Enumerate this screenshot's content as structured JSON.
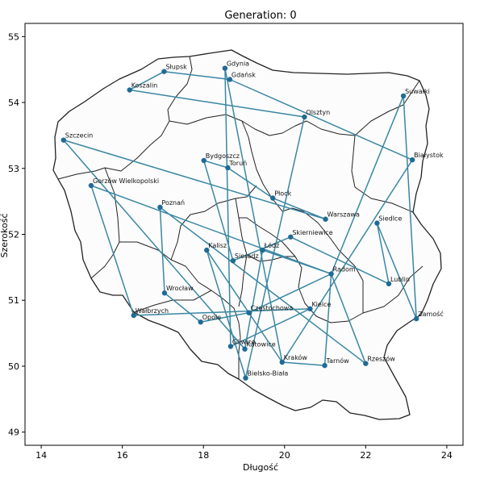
{
  "chart_data": {
    "type": "line",
    "title": "Generation: 0",
    "xlabel": "Długość",
    "ylabel": "Szerokość",
    "xlim": [
      13.6,
      24.4
    ],
    "ylim": [
      48.8,
      55.2
    ],
    "xticks": [
      "14",
      "16",
      "18",
      "20",
      "22",
      "24"
    ],
    "xtick_values": [
      14,
      16,
      18,
      20,
      22,
      24
    ],
    "yticks": [
      "49",
      "50",
      "51",
      "52",
      "53",
      "54",
      "55"
    ],
    "ytick_values": [
      49,
      50,
      51,
      52,
      53,
      54,
      55
    ],
    "grid": false,
    "colors": {
      "route": "#3a87a3",
      "point": "#1f6b96",
      "border": "#222222"
    },
    "cities": [
      {
        "name": "Słupsk",
        "x": 17.03,
        "y": 54.47
      },
      {
        "name": "Gdynia",
        "x": 18.53,
        "y": 54.52
      },
      {
        "name": "Gdańsk",
        "x": 18.65,
        "y": 54.35
      },
      {
        "name": "Koszalin",
        "x": 16.18,
        "y": 54.19
      },
      {
        "name": "Suwałki",
        "x": 22.93,
        "y": 54.1
      },
      {
        "name": "Olsztyn",
        "x": 20.49,
        "y": 53.78
      },
      {
        "name": "Szczecin",
        "x": 14.55,
        "y": 53.43
      },
      {
        "name": "Białystok",
        "x": 23.15,
        "y": 53.13
      },
      {
        "name": "Bydgoszcz",
        "x": 18.01,
        "y": 53.12
      },
      {
        "name": "Toruń",
        "x": 18.6,
        "y": 53.01
      },
      {
        "name": "Gorzów Wielkopolski",
        "x": 15.23,
        "y": 52.74
      },
      {
        "name": "Płock",
        "x": 19.71,
        "y": 52.55
      },
      {
        "name": "Poznań",
        "x": 16.93,
        "y": 52.41
      },
      {
        "name": "Warszawa",
        "x": 21.01,
        "y": 52.23
      },
      {
        "name": "Siedlce",
        "x": 22.28,
        "y": 52.17
      },
      {
        "name": "Skierniewice",
        "x": 20.15,
        "y": 51.96
      },
      {
        "name": "Kalisz",
        "x": 18.08,
        "y": 51.76
      },
      {
        "name": "Łódź",
        "x": 19.46,
        "y": 51.76
      },
      {
        "name": "Sieradz",
        "x": 18.73,
        "y": 51.6
      },
      {
        "name": "Radom",
        "x": 21.15,
        "y": 51.4
      },
      {
        "name": "Lublin",
        "x": 22.57,
        "y": 51.25
      },
      {
        "name": "Wrocław",
        "x": 17.04,
        "y": 51.11
      },
      {
        "name": "Kielce",
        "x": 20.63,
        "y": 50.87
      },
      {
        "name": "Częstochowa",
        "x": 19.12,
        "y": 50.81
      },
      {
        "name": "Wałbrzych",
        "x": 16.28,
        "y": 50.77
      },
      {
        "name": "Zamość",
        "x": 23.25,
        "y": 50.72
      },
      {
        "name": "Opole",
        "x": 17.93,
        "y": 50.67
      },
      {
        "name": "Gliwice",
        "x": 18.67,
        "y": 50.3
      },
      {
        "name": "Katowice",
        "x": 19.02,
        "y": 50.26
      },
      {
        "name": "Kraków",
        "x": 19.94,
        "y": 50.06
      },
      {
        "name": "Rzeszów",
        "x": 22.0,
        "y": 50.04
      },
      {
        "name": "Tarnów",
        "x": 20.99,
        "y": 50.01
      },
      {
        "name": "Bielsko-Biała",
        "x": 19.04,
        "y": 49.82
      }
    ],
    "route_order": [
      "Szczecin",
      "Warszawa",
      "Płock",
      "Toruń",
      "Bydgoszcz",
      "Sieradz",
      "Skierniewice",
      "Lublin",
      "Siedlce",
      "Zamość",
      "Suwałki",
      "Radom",
      "Gorzów Wielkopolski",
      "Wałbrzych",
      "Kielce",
      "Gliwice",
      "Gdynia",
      "Kraków",
      "Białystok",
      "Gdańsk",
      "Słupsk",
      "Koszalin",
      "Olsztyn",
      "Bielsko-Biała",
      "Kalisz",
      "Kraków",
      "Tarnów",
      "Radom",
      "Częstochowa",
      "Opole",
      "Wrocław",
      "Poznań",
      "Rzeszów",
      "Radom",
      "Łódź",
      "Katowice",
      "Szczecin"
    ]
  }
}
